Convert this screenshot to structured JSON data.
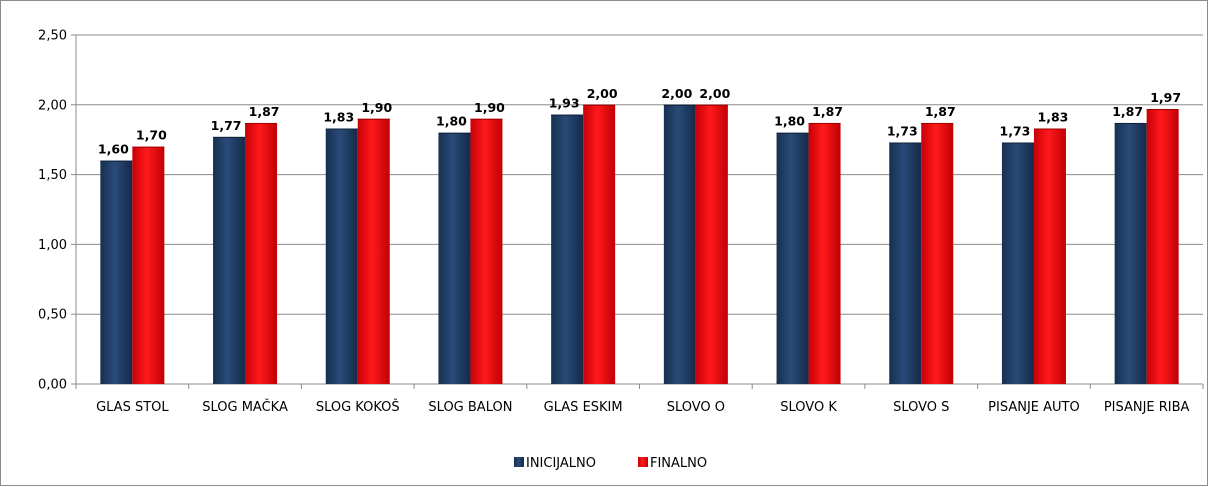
{
  "chart_data": {
    "type": "bar",
    "title": "",
    "xlabel": "",
    "ylabel": "",
    "ylim": [
      0,
      2.5
    ],
    "yticks": [
      "0,00",
      "0,50",
      "1,00",
      "1,50",
      "2,00",
      "2,50"
    ],
    "ytick_values": [
      0,
      0.5,
      1,
      1.5,
      2,
      2.5
    ],
    "grid": "horizontal",
    "legend_position": "bottom",
    "categories": [
      "GLAS STOL",
      "SLOG MAČKA",
      "SLOG KOKOŠ",
      "SLOG BALON",
      "GLAS ESKIM",
      "SLOVO O",
      "SLOVO K",
      "SLOVO S",
      "PISANJE AUTO",
      "PISANJE RIBA"
    ],
    "series": [
      {
        "name": "INICIJALNO",
        "color": "#1f3b63",
        "values": [
          1.6,
          1.77,
          1.83,
          1.8,
          1.93,
          2.0,
          1.8,
          1.73,
          1.73,
          1.87
        ],
        "labels": [
          "1,60",
          "1,77",
          "1,83",
          "1,80",
          "1,93",
          "2,00",
          "1,80",
          "1,73",
          "1,73",
          "1,87"
        ]
      },
      {
        "name": "FINALNO",
        "color": "#e8090e",
        "values": [
          1.7,
          1.87,
          1.9,
          1.9,
          2.0,
          2.0,
          1.87,
          1.87,
          1.83,
          1.97
        ],
        "labels": [
          "1,70",
          "1,87",
          "1,90",
          "1,90",
          "2,00",
          "2,00",
          "1,87",
          "1,87",
          "1,83",
          "1,97"
        ]
      }
    ]
  }
}
